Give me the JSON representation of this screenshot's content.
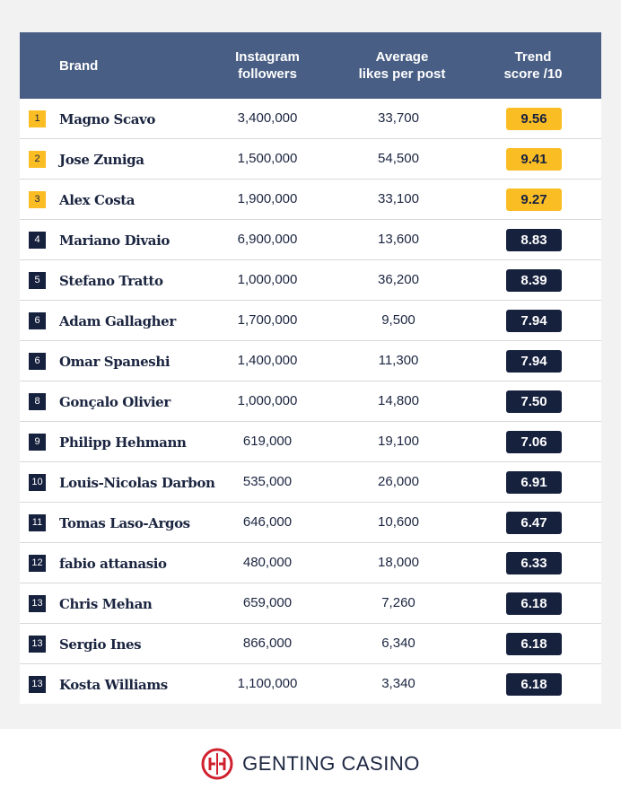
{
  "colors": {
    "header_bg": "#485e84",
    "navy": "#16213e",
    "gold": "#fbbd24",
    "brand_red": "#d0202e"
  },
  "chart_data": {
    "type": "table",
    "columns": [
      "Brand",
      "Instagram followers",
      "Average likes per post",
      "Trend score /10"
    ],
    "rows": [
      {
        "rank": "1",
        "brand": "Magno Scavo",
        "followers": "3,400,000",
        "likes": "33,700",
        "score": "9.56",
        "tier": "gold"
      },
      {
        "rank": "2",
        "brand": "Jose Zuniga",
        "followers": "1,500,000",
        "likes": "54,500",
        "score": "9.41",
        "tier": "gold"
      },
      {
        "rank": "3",
        "brand": "Alex Costa",
        "followers": "1,900,000",
        "likes": "33,100",
        "score": "9.27",
        "tier": "gold"
      },
      {
        "rank": "4",
        "brand": "Mariano Divaio",
        "followers": "6,900,000",
        "likes": "13,600",
        "score": "8.83",
        "tier": "navy"
      },
      {
        "rank": "5",
        "brand": "Stefano Tratto",
        "followers": "1,000,000",
        "likes": "36,200",
        "score": "8.39",
        "tier": "navy"
      },
      {
        "rank": "6",
        "brand": "Adam Gallagher",
        "followers": "1,700,000",
        "likes": "9,500",
        "score": "7.94",
        "tier": "navy"
      },
      {
        "rank": "6",
        "brand": "Omar Spaneshi",
        "followers": "1,400,000",
        "likes": "11,300",
        "score": "7.94",
        "tier": "navy"
      },
      {
        "rank": "8",
        "brand": "Gonçalo Olivier",
        "followers": "1,000,000",
        "likes": "14,800",
        "score": "7.50",
        "tier": "navy"
      },
      {
        "rank": "9",
        "brand": "Philipp Hehmann",
        "followers": "619,000",
        "likes": "19,100",
        "score": "7.06",
        "tier": "navy"
      },
      {
        "rank": "10",
        "brand": "Louis-Nicolas Darbon",
        "followers": "535,000",
        "likes": "26,000",
        "score": "6.91",
        "tier": "navy"
      },
      {
        "rank": "11",
        "brand": "Tomas Laso-Argos",
        "followers": "646,000",
        "likes": "10,600",
        "score": "6.47",
        "tier": "navy"
      },
      {
        "rank": "12",
        "brand": "fabio attanasio",
        "followers": "480,000",
        "likes": "18,000",
        "score": "6.33",
        "tier": "navy"
      },
      {
        "rank": "13",
        "brand": "Chris Mehan",
        "followers": "659,000",
        "likes": "7,260",
        "score": "6.18",
        "tier": "navy"
      },
      {
        "rank": "13",
        "brand": "Sergio Ines",
        "followers": "866,000",
        "likes": "6,340",
        "score": "6.18",
        "tier": "navy"
      },
      {
        "rank": "13",
        "brand": "Kosta Williams",
        "followers": "1,100,000",
        "likes": "3,340",
        "score": "6.18",
        "tier": "navy"
      }
    ]
  },
  "header": {
    "brand": "Brand",
    "followers_line1": "Instagram",
    "followers_line2": "followers",
    "likes_line1": "Average",
    "likes_line2": "likes per post",
    "trend_line1": "Trend",
    "trend_line2": "score /10"
  },
  "footer": {
    "logo_text": "GENTING CASINO",
    "logo_icon": "genting-logo-icon"
  }
}
